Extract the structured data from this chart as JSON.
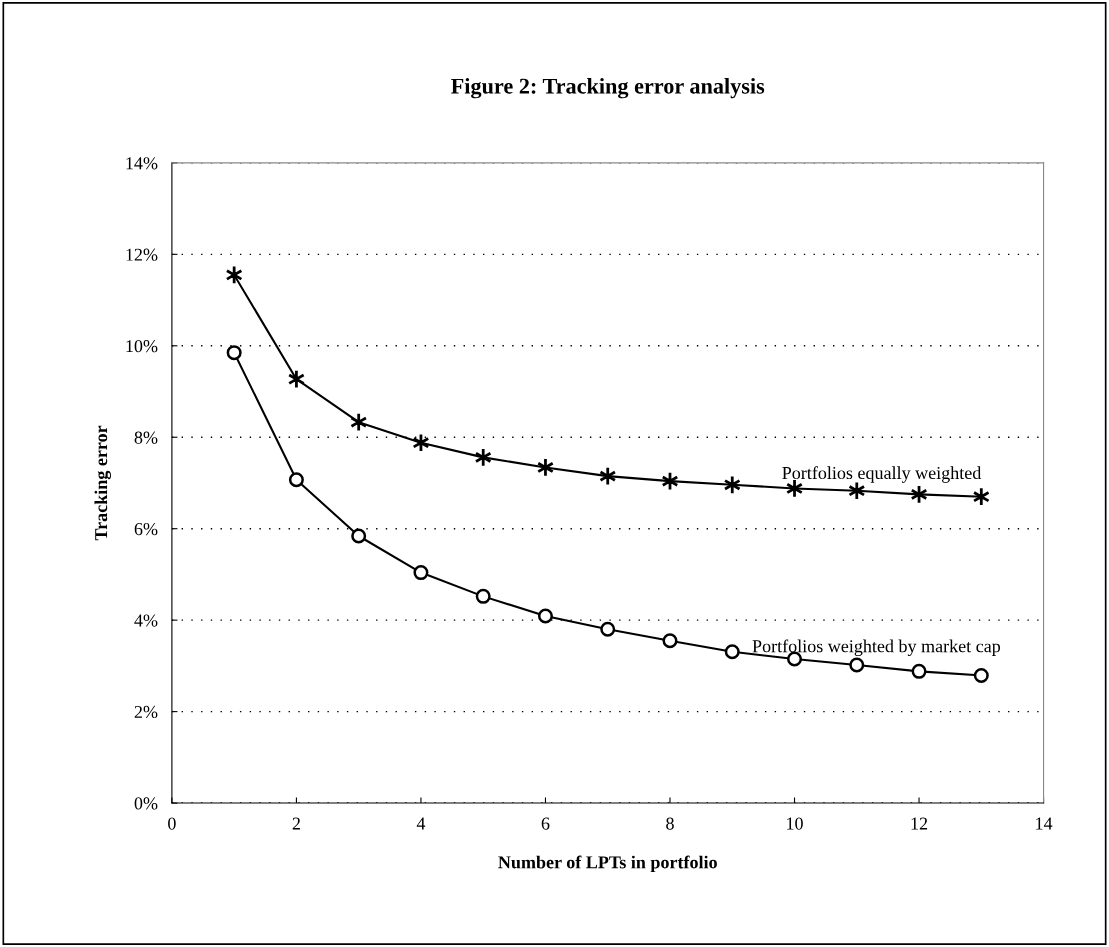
{
  "chart_data": {
    "type": "line",
    "title": "Figure 2: Tracking error analysis",
    "xlabel": "Number of LPTs in portfolio",
    "ylabel": "Tracking error",
    "x": [
      1,
      2,
      3,
      4,
      5,
      6,
      7,
      8,
      9,
      10,
      11,
      12,
      13
    ],
    "series": [
      {
        "name": "Portfolios equally weighted",
        "color": "#000000",
        "marker": "cross",
        "values": [
          11.55,
          9.27,
          8.33,
          7.88,
          7.56,
          7.34,
          7.15,
          7.04,
          6.96,
          6.88,
          6.83,
          6.75,
          6.7
        ]
      },
      {
        "name": "Portfolios weighted by market cap",
        "color": "#000000",
        "marker": "circle",
        "values": [
          9.85,
          7.07,
          5.84,
          5.04,
          4.52,
          4.09,
          3.8,
          3.55,
          3.31,
          3.15,
          3.02,
          2.88,
          2.79
        ]
      }
    ],
    "xlim": [
      0,
      14
    ],
    "xticks": [
      0,
      2,
      4,
      6,
      8,
      10,
      12,
      14
    ],
    "ylim": [
      0,
      14
    ],
    "yticks": [
      {
        "value": 0,
        "label": "0%"
      },
      {
        "value": 2,
        "label": "2%"
      },
      {
        "value": 4,
        "label": "4%"
      },
      {
        "value": 6,
        "label": "6%"
      },
      {
        "value": 8,
        "label": "8%"
      },
      {
        "value": 10,
        "label": "10%"
      },
      {
        "value": 12,
        "label": "12%"
      },
      {
        "value": 14,
        "label": "14%"
      }
    ],
    "grid": "y",
    "legend": false
  }
}
